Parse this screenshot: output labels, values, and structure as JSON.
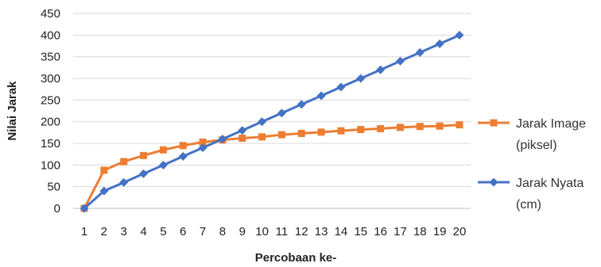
{
  "chart_data": {
    "type": "line",
    "title": "",
    "xlabel": "Percobaan ke-",
    "ylabel": "Nilai Jarak",
    "categories": [
      "1",
      "2",
      "3",
      "4",
      "5",
      "6",
      "7",
      "8",
      "9",
      "10",
      "11",
      "12",
      "13",
      "14",
      "15",
      "16",
      "17",
      "18",
      "19",
      "20"
    ],
    "ylim": [
      0,
      450
    ],
    "yticks": [
      "0",
      "50",
      "100",
      "150",
      "200",
      "250",
      "300",
      "350",
      "400",
      "450"
    ],
    "grid": true,
    "legend_position": "right",
    "series": [
      {
        "name_lines": [
          "Jarak Image",
          "(piksel)"
        ],
        "color": "#ED7D31",
        "marker": "square",
        "values": [
          0,
          88,
          108,
          122,
          135,
          145,
          153,
          158,
          162,
          165,
          170,
          173,
          176,
          179,
          182,
          184,
          187,
          189,
          190,
          193
        ]
      },
      {
        "name_lines": [
          "Jarak Nyata",
          "(cm)"
        ],
        "color": "#4472C4",
        "marker": "diamond",
        "values": [
          0,
          40,
          60,
          80,
          100,
          120,
          140,
          160,
          180,
          200,
          220,
          240,
          260,
          280,
          300,
          320,
          340,
          360,
          380,
          400
        ]
      }
    ]
  }
}
